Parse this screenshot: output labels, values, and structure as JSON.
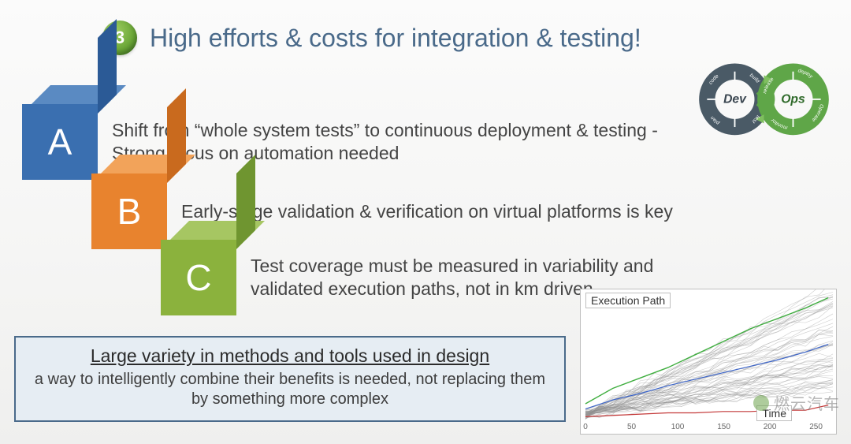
{
  "title": {
    "badge": "3",
    "text": "High efforts & costs for integration & testing!"
  },
  "devops": {
    "left_label": "Dev",
    "right_label": "Ops",
    "left_ring_color": "#4a5a66",
    "right_ring_color": "#5fa648",
    "arrow_color": "#7fbf5f",
    "left_segments": [
      "code",
      "build",
      "test",
      "plan"
    ],
    "right_segments": [
      "release",
      "deploy",
      "Operate",
      "monitor"
    ],
    "segment_fontsize": 7
  },
  "points": {
    "a": {
      "letter": "A",
      "text": "Shift from “whole system tests” to  continuous deployment & testing - Strong focus on automation needed",
      "front": "#3a6fb0",
      "top": "#5a8ac2",
      "side": "#2b5a96"
    },
    "b": {
      "letter": "B",
      "text": "Early-stage validation & verification on virtual platforms is key",
      "front": "#e8832e",
      "top": "#f2a35a",
      "side": "#c96a1e"
    },
    "c": {
      "letter": "C",
      "text": "Test coverage must be measured in variability and validated execution paths, not in km driven",
      "front": "#8bb23d",
      "top": "#a6c662",
      "side": "#6f9530"
    }
  },
  "callout": {
    "headline": "Large variety in methods and tools used in design",
    "sub": "a way to intelligently combine their benefits is needed, not replacing them by something more complex",
    "border_color": "#4a6a8a",
    "bg_color": "#e6edf3"
  },
  "chart": {
    "type": "line",
    "y_label": "Execution Path",
    "x_label": "Time",
    "xlim": [
      0,
      270
    ],
    "xtick_step": 50,
    "xtick_labels": [
      "0",
      "50",
      "100",
      "150",
      "200",
      "250"
    ],
    "ylim": [
      0,
      100
    ],
    "background_color": "#ffffff",
    "border_color": "#bfbfbf",
    "grey_line_color": "#8d8d8d",
    "grey_line_width": 0.6,
    "grey_line_opacity": 0.45,
    "grey_series_count": 60,
    "highlight_top": {
      "color": "#3fae3f",
      "width": 1.4,
      "points": [
        [
          0,
          14
        ],
        [
          30,
          26
        ],
        [
          60,
          34
        ],
        [
          90,
          42
        ],
        [
          120,
          52
        ],
        [
          150,
          62
        ],
        [
          180,
          72
        ],
        [
          210,
          80
        ],
        [
          240,
          88
        ],
        [
          265,
          96
        ]
      ]
    },
    "highlight_mid": {
      "color": "#3a63c8",
      "width": 1.2,
      "points": [
        [
          0,
          10
        ],
        [
          30,
          17
        ],
        [
          60,
          22
        ],
        [
          90,
          28
        ],
        [
          120,
          33
        ],
        [
          150,
          38
        ],
        [
          180,
          43
        ],
        [
          210,
          48
        ],
        [
          240,
          54
        ],
        [
          265,
          60
        ]
      ]
    },
    "highlight_bottom": {
      "color": "#c43a3a",
      "width": 1.2,
      "points": [
        [
          0,
          4
        ],
        [
          30,
          5
        ],
        [
          60,
          6
        ],
        [
          90,
          7
        ],
        [
          120,
          7
        ],
        [
          150,
          8
        ],
        [
          180,
          8
        ],
        [
          210,
          9
        ],
        [
          240,
          9
        ],
        [
          265,
          13
        ]
      ]
    }
  },
  "watermark": "燃云汽车",
  "colors": {
    "title_text": "#4a6a8a",
    "body_text": "#444444",
    "page_bg_top": "#fbfbfb",
    "page_bg_bottom": "#efefee"
  },
  "typography": {
    "title_fontsize": 32,
    "body_fontsize": 23,
    "callout_headline_fontsize": 23,
    "callout_sub_fontsize": 20,
    "chart_label_fontsize": 14,
    "xtick_fontsize": 10
  }
}
